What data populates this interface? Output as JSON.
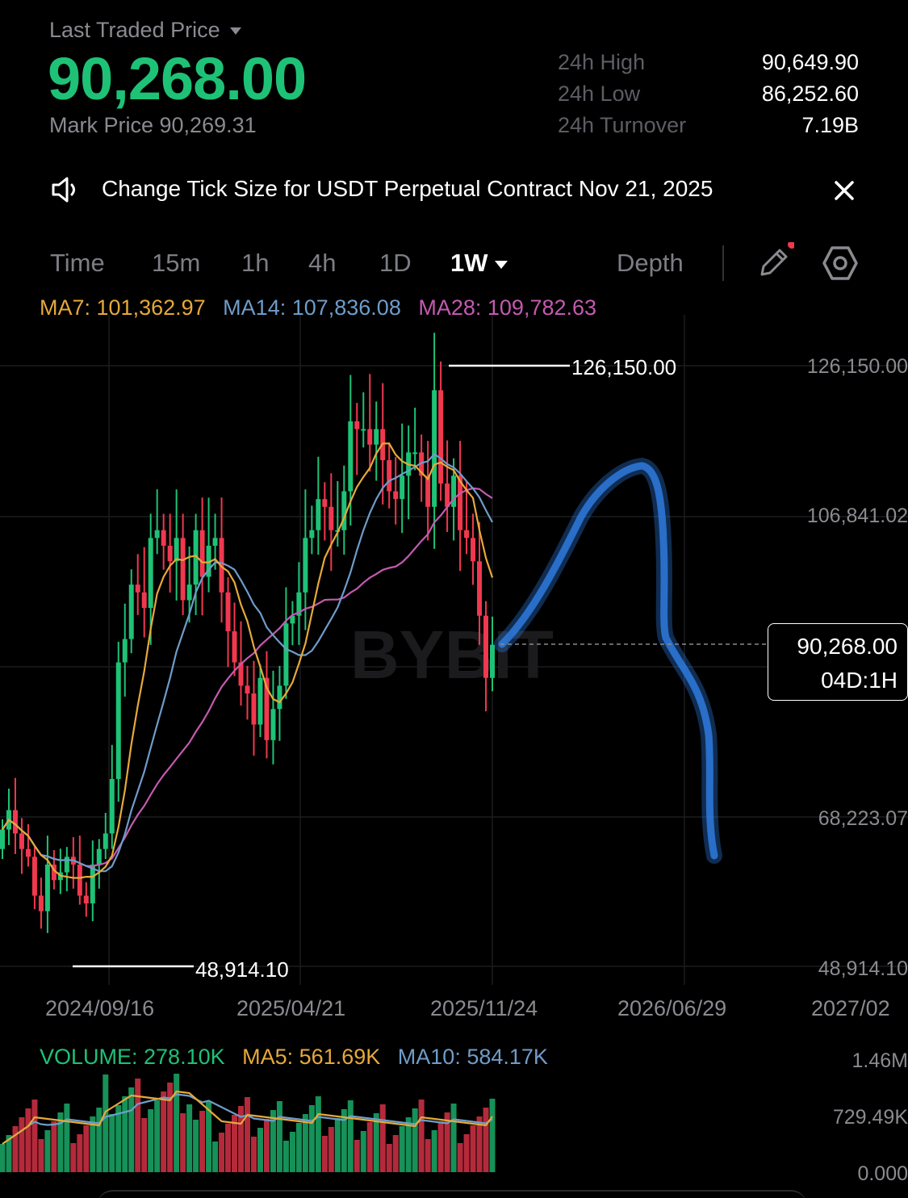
{
  "header": {
    "last_traded_label": "Last Traded Price",
    "last_price": "90,268.00",
    "mark_price": "Mark Price 90,269.31",
    "stats": [
      {
        "label": "24h High",
        "value": "90,649.90"
      },
      {
        "label": "24h Low",
        "value": "86,252.60"
      },
      {
        "label": "24h Turnover",
        "value": "7.19B"
      }
    ]
  },
  "notice": {
    "text": "Change Tick Size for USDT Perpetual Contract Nov 21, 2025"
  },
  "tabs": {
    "time": "Time",
    "m15": "15m",
    "h1": "1h",
    "h4": "4h",
    "d1": "1D",
    "w1": "1W",
    "depth": "Depth"
  },
  "indicators": {
    "ma7": "MA7: 101,362.97",
    "ma14": "MA14: 107,836.08",
    "ma28": "MA28: 109,782.63"
  },
  "chart": {
    "watermark": "BYBIT",
    "high_label": "126,150.00",
    "low_label": "48,914.10",
    "price_axis": [
      "126,150.00",
      "106,841.02",
      "90,268.00",
      "68,223.07",
      "48,914.10"
    ],
    "current_price": "90,268.00",
    "countdown": "04D:1H",
    "date_axis": [
      "2024/09/16",
      "2025/04/21",
      "2025/11/24",
      "2026/06/29",
      "2027/02"
    ]
  },
  "volume": {
    "volume": "VOLUME: 278.10K",
    "ma5": "MA5: 561.69K",
    "ma10": "MA10: 584.17K",
    "axis": [
      "1.46M",
      "729.49K",
      "0.000"
    ]
  },
  "colors": {
    "up": "#1ec276",
    "down": "#f0384f",
    "ma7": "#e6a93a",
    "ma14": "#6f9cc9",
    "ma28": "#c45ab0",
    "annotation": "#2f7fe6"
  },
  "chart_data": {
    "type": "candlestick",
    "interval": "1W",
    "y_axis_labels": [
      48914.1,
      68223.07,
      106841.02,
      126150.0
    ],
    "period_high": 126150.0,
    "period_low": 48914.1,
    "last": 90268.0,
    "x_axis_labels": [
      "2024/09/16",
      "2025/04/21",
      "2025/11/24",
      "2026/06/29",
      "2027/02"
    ],
    "annotation": "hand-drawn blue arrow: rises from current price toward ~113,000 then falls to ~62,000",
    "closes": [
      66500,
      69000,
      66000,
      64000,
      63000,
      58000,
      56000,
      62000,
      60000,
      61000,
      63000,
      62000,
      58000,
      57000,
      62000,
      64000,
      66000,
      73000,
      88000,
      91000,
      98000,
      97000,
      95000,
      104000,
      105000,
      103000,
      101000,
      104000,
      96000,
      98000,
      105000,
      99000,
      103000,
      104000,
      97000,
      92000,
      88000,
      85000,
      84000,
      80000,
      86000,
      78000,
      82000,
      85000,
      93000,
      94000,
      97000,
      104000,
      105000,
      109000,
      108000,
      105000,
      105000,
      110000,
      119000,
      118000,
      118000,
      116000,
      118000,
      114000,
      110000,
      109000,
      112000,
      115000,
      115000,
      112000,
      108000,
      123000,
      111000,
      108000,
      112000,
      105000,
      104000,
      101000,
      94000,
      86000,
      90268
    ]
  }
}
